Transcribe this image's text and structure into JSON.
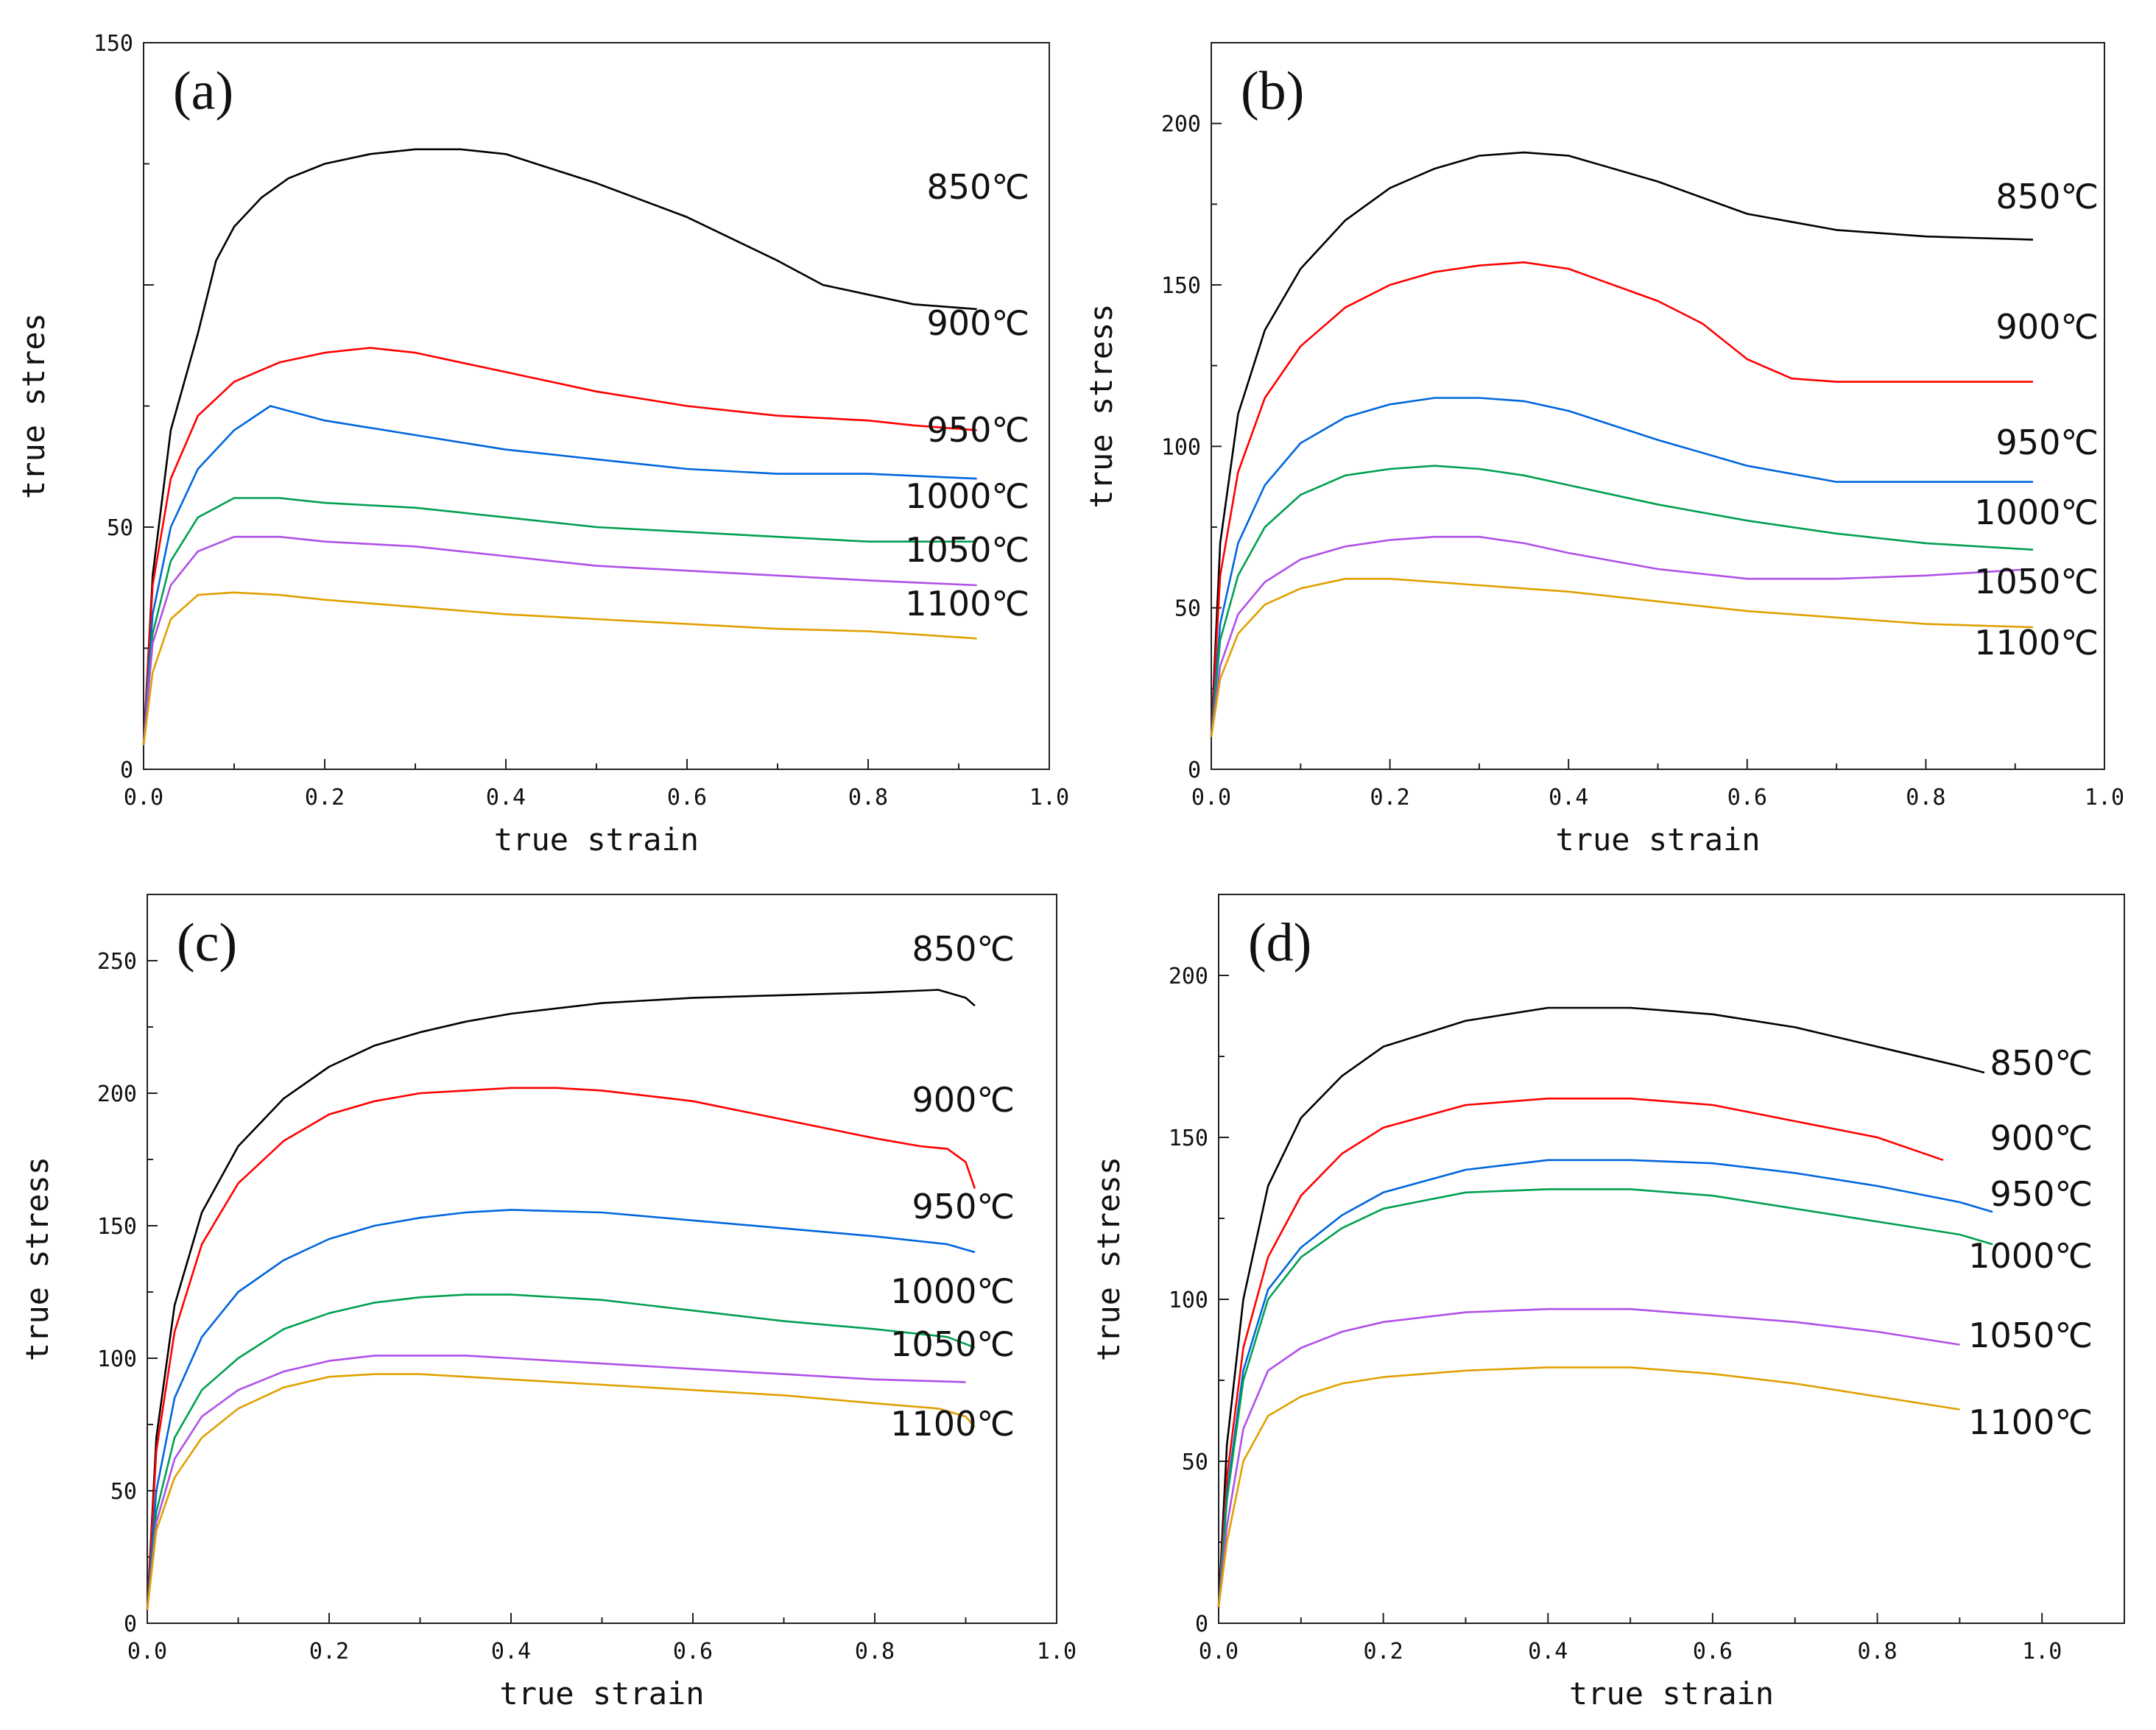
{
  "colors": {
    "850": "#000000",
    "900": "#ff0000",
    "950": "#0066dd",
    "1000": "#00a050",
    "1050": "#b050e8",
    "1100": "#e0a000"
  },
  "chart_data": [
    {
      "type": "line",
      "panel_label": "(a)",
      "xlabel": "true strain",
      "ylabel": "true stres",
      "xlim": [
        0,
        1.0
      ],
      "ylim": [
        0,
        150
      ],
      "xticks": [
        "0.0",
        "0.2",
        "0.4",
        "0.6",
        "0.8",
        "1.0"
      ],
      "yticks": [
        {
          "v": 0,
          "label": "0"
        },
        {
          "v": 50,
          "label": "50"
        },
        {
          "v": 100,
          "label": ""
        },
        {
          "v": 150,
          "label": "150"
        }
      ],
      "yminor": [
        25,
        75,
        125
      ],
      "series": [
        {
          "name": "850℃",
          "color_key": "850",
          "x": [
            0,
            0.01,
            0.03,
            0.06,
            0.08,
            0.1,
            0.13,
            0.16,
            0.2,
            0.25,
            0.3,
            0.35,
            0.4,
            0.5,
            0.6,
            0.7,
            0.75,
            0.8,
            0.85,
            0.92
          ],
          "y": [
            5,
            40,
            70,
            90,
            105,
            112,
            118,
            122,
            125,
            127,
            128,
            128,
            127,
            121,
            114,
            105,
            100,
            98,
            96,
            95
          ]
        },
        {
          "name": "900℃",
          "color_key": "900",
          "x": [
            0,
            0.01,
            0.03,
            0.06,
            0.1,
            0.15,
            0.2,
            0.25,
            0.3,
            0.35,
            0.4,
            0.5,
            0.6,
            0.7,
            0.8,
            0.85,
            0.92
          ],
          "y": [
            5,
            38,
            60,
            73,
            80,
            84,
            86,
            87,
            86,
            84,
            82,
            78,
            75,
            73,
            72,
            71,
            70
          ]
        },
        {
          "name": "950℃",
          "color_key": "950",
          "x": [
            0,
            0.01,
            0.03,
            0.06,
            0.1,
            0.14,
            0.2,
            0.3,
            0.4,
            0.5,
            0.6,
            0.7,
            0.8,
            0.92
          ],
          "y": [
            5,
            32,
            50,
            62,
            70,
            75,
            72,
            69,
            66,
            64,
            62,
            61,
            61,
            60
          ]
        },
        {
          "name": "1000℃",
          "color_key": "1000",
          "x": [
            0,
            0.01,
            0.03,
            0.06,
            0.1,
            0.15,
            0.2,
            0.3,
            0.4,
            0.5,
            0.6,
            0.7,
            0.8,
            0.92
          ],
          "y": [
            5,
            28,
            43,
            52,
            56,
            56,
            55,
            54,
            52,
            50,
            49,
            48,
            47,
            47
          ]
        },
        {
          "name": "1050℃",
          "color_key": "1050",
          "x": [
            0,
            0.01,
            0.03,
            0.06,
            0.1,
            0.15,
            0.2,
            0.3,
            0.4,
            0.5,
            0.6,
            0.7,
            0.8,
            0.92
          ],
          "y": [
            5,
            26,
            38,
            45,
            48,
            48,
            47,
            46,
            44,
            42,
            41,
            40,
            39,
            38
          ]
        },
        {
          "name": "1100℃",
          "color_key": "1100",
          "x": [
            0,
            0.01,
            0.03,
            0.06,
            0.1,
            0.15,
            0.2,
            0.3,
            0.4,
            0.5,
            0.6,
            0.7,
            0.8,
            0.92
          ],
          "y": [
            5,
            20,
            31,
            36,
            36.5,
            36,
            35,
            33.5,
            32,
            31,
            30,
            29,
            28.5,
            27
          ]
        }
      ]
    },
    {
      "type": "line",
      "panel_label": "(b)",
      "xlabel": "true strain",
      "ylabel": "true stress",
      "xlim": [
        0,
        1.0
      ],
      "ylim": [
        0,
        225
      ],
      "xticks": [
        "0.0",
        "0.2",
        "0.4",
        "0.6",
        "0.8",
        "1.0"
      ],
      "yticks": [
        {
          "v": 0,
          "label": "0"
        },
        {
          "v": 50,
          "label": "50"
        },
        {
          "v": 100,
          "label": "100"
        },
        {
          "v": 150,
          "label": "150"
        },
        {
          "v": 200,
          "label": "200"
        }
      ],
      "yminor": [
        25,
        75,
        125,
        175
      ],
      "series": [
        {
          "name": "850℃",
          "color_key": "850",
          "x": [
            0,
            0.01,
            0.03,
            0.06,
            0.1,
            0.15,
            0.2,
            0.25,
            0.3,
            0.35,
            0.4,
            0.5,
            0.6,
            0.7,
            0.8,
            0.92
          ],
          "y": [
            10,
            70,
            110,
            136,
            155,
            170,
            180,
            186,
            190,
            191,
            190,
            182,
            172,
            167,
            165,
            164
          ]
        },
        {
          "name": "900℃",
          "color_key": "900",
          "x": [
            0,
            0.01,
            0.03,
            0.06,
            0.1,
            0.15,
            0.2,
            0.25,
            0.3,
            0.35,
            0.4,
            0.5,
            0.55,
            0.6,
            0.65,
            0.7,
            0.8,
            0.92
          ],
          "y": [
            10,
            60,
            92,
            115,
            131,
            143,
            150,
            154,
            156,
            157,
            155,
            145,
            138,
            127,
            121,
            120,
            120,
            120
          ]
        },
        {
          "name": "950℃",
          "color_key": "950",
          "x": [
            0,
            0.01,
            0.03,
            0.06,
            0.1,
            0.15,
            0.2,
            0.25,
            0.3,
            0.35,
            0.4,
            0.5,
            0.6,
            0.7,
            0.8,
            0.92
          ],
          "y": [
            10,
            45,
            70,
            88,
            101,
            109,
            113,
            115,
            115,
            114,
            111,
            102,
            94,
            89,
            89,
            89
          ]
        },
        {
          "name": "1000℃",
          "color_key": "1000",
          "x": [
            0,
            0.01,
            0.03,
            0.06,
            0.1,
            0.15,
            0.2,
            0.25,
            0.3,
            0.35,
            0.4,
            0.5,
            0.6,
            0.7,
            0.8,
            0.92
          ],
          "y": [
            10,
            40,
            60,
            75,
            85,
            91,
            93,
            94,
            93,
            91,
            88,
            82,
            77,
            73,
            70,
            68
          ]
        },
        {
          "name": "1050℃",
          "color_key": "1050",
          "x": [
            0,
            0.01,
            0.03,
            0.06,
            0.1,
            0.15,
            0.2,
            0.25,
            0.3,
            0.35,
            0.4,
            0.5,
            0.6,
            0.7,
            0.8,
            0.92
          ],
          "y": [
            10,
            32,
            48,
            58,
            65,
            69,
            71,
            72,
            72,
            70,
            67,
            62,
            59,
            59,
            60,
            62
          ]
        },
        {
          "name": "1100℃",
          "color_key": "1100",
          "x": [
            0,
            0.01,
            0.03,
            0.06,
            0.1,
            0.15,
            0.2,
            0.3,
            0.4,
            0.5,
            0.6,
            0.7,
            0.8,
            0.92
          ],
          "y": [
            10,
            28,
            42,
            51,
            56,
            59,
            59,
            57,
            55,
            52,
            49,
            47,
            45,
            44
          ]
        }
      ]
    },
    {
      "type": "line",
      "panel_label": "(c)",
      "xlabel": "true strain",
      "ylabel": "true stress",
      "xlim": [
        0,
        1.0
      ],
      "ylim": [
        0,
        275
      ],
      "xticks": [
        "0.0",
        "0.2",
        "0.4",
        "0.6",
        "0.8",
        "1.0"
      ],
      "yticks": [
        {
          "v": 0,
          "label": "0"
        },
        {
          "v": 50,
          "label": "50"
        },
        {
          "v": 100,
          "label": "100"
        },
        {
          "v": 150,
          "label": "150"
        },
        {
          "v": 200,
          "label": "200"
        },
        {
          "v": 250,
          "label": "250"
        }
      ],
      "yminor": [
        25,
        75,
        125,
        175,
        225
      ],
      "series": [
        {
          "name": "850℃",
          "color_key": "850",
          "x": [
            0,
            0.01,
            0.03,
            0.06,
            0.1,
            0.15,
            0.2,
            0.25,
            0.3,
            0.35,
            0.4,
            0.5,
            0.6,
            0.7,
            0.8,
            0.87,
            0.9,
            0.91
          ],
          "y": [
            5,
            70,
            120,
            155,
            180,
            198,
            210,
            218,
            223,
            227,
            230,
            234,
            236,
            237,
            238,
            239,
            236,
            233
          ]
        },
        {
          "name": "900℃",
          "color_key": "900",
          "x": [
            0,
            0.01,
            0.03,
            0.06,
            0.1,
            0.15,
            0.2,
            0.25,
            0.3,
            0.35,
            0.4,
            0.45,
            0.5,
            0.6,
            0.7,
            0.8,
            0.85,
            0.88,
            0.9,
            0.91
          ],
          "y": [
            5,
            65,
            110,
            143,
            166,
            182,
            192,
            197,
            200,
            201,
            202,
            202,
            201,
            197,
            190,
            183,
            180,
            179,
            174,
            164
          ]
        },
        {
          "name": "950℃",
          "color_key": "950",
          "x": [
            0,
            0.01,
            0.03,
            0.06,
            0.1,
            0.15,
            0.2,
            0.25,
            0.3,
            0.35,
            0.4,
            0.5,
            0.6,
            0.7,
            0.8,
            0.88,
            0.91
          ],
          "y": [
            5,
            50,
            85,
            108,
            125,
            137,
            145,
            150,
            153,
            155,
            156,
            155,
            152,
            149,
            146,
            143,
            140
          ]
        },
        {
          "name": "1000℃",
          "color_key": "1000",
          "x": [
            0,
            0.01,
            0.03,
            0.06,
            0.1,
            0.15,
            0.2,
            0.25,
            0.3,
            0.35,
            0.4,
            0.5,
            0.6,
            0.7,
            0.8,
            0.88,
            0.91
          ],
          "y": [
            5,
            42,
            70,
            88,
            100,
            111,
            117,
            121,
            123,
            124,
            124,
            122,
            118,
            114,
            111,
            108,
            104
          ]
        },
        {
          "name": "1050℃",
          "color_key": "1050",
          "x": [
            0,
            0.01,
            0.03,
            0.06,
            0.1,
            0.15,
            0.2,
            0.25,
            0.3,
            0.35,
            0.4,
            0.5,
            0.6,
            0.7,
            0.8,
            0.9
          ],
          "y": [
            5,
            38,
            62,
            78,
            88,
            95,
            99,
            101,
            101,
            101,
            100,
            98,
            96,
            94,
            92,
            91
          ]
        },
        {
          "name": "1100℃",
          "color_key": "1100",
          "x": [
            0,
            0.01,
            0.03,
            0.06,
            0.1,
            0.15,
            0.2,
            0.25,
            0.3,
            0.35,
            0.4,
            0.5,
            0.6,
            0.7,
            0.8,
            0.87,
            0.9,
            0.91
          ],
          "y": [
            5,
            35,
            55,
            70,
            81,
            89,
            93,
            94,
            94,
            93,
            92,
            90,
            88,
            86,
            83,
            81,
            78,
            74
          ]
        }
      ]
    },
    {
      "type": "line",
      "panel_label": "(d)",
      "xlabel": "true strain",
      "ylabel": "true stress",
      "xlim": [
        0,
        1.1
      ],
      "ylim": [
        0,
        225
      ],
      "xticks": [
        "0.0",
        "0.2",
        "0.4",
        "0.6",
        "0.8",
        "1.0"
      ],
      "yticks": [
        {
          "v": 0,
          "label": "0"
        },
        {
          "v": 50,
          "label": "50"
        },
        {
          "v": 100,
          "label": "100"
        },
        {
          "v": 150,
          "label": "150"
        },
        {
          "v": 200,
          "label": "200"
        }
      ],
      "yminor": [
        25,
        75,
        125,
        175
      ],
      "series": [
        {
          "name": "850℃",
          "color_key": "850",
          "x": [
            0,
            0.01,
            0.03,
            0.06,
            0.1,
            0.15,
            0.2,
            0.3,
            0.4,
            0.5,
            0.6,
            0.7,
            0.8,
            0.9,
            0.93
          ],
          "y": [
            5,
            55,
            100,
            135,
            156,
            169,
            178,
            186,
            190,
            190,
            188,
            184,
            178,
            172,
            170
          ]
        },
        {
          "name": "900℃",
          "color_key": "900",
          "x": [
            0,
            0.01,
            0.03,
            0.06,
            0.1,
            0.15,
            0.2,
            0.3,
            0.4,
            0.5,
            0.6,
            0.7,
            0.8,
            0.88
          ],
          "y": [
            5,
            45,
            85,
            113,
            132,
            145,
            153,
            160,
            162,
            162,
            160,
            155,
            150,
            143
          ]
        },
        {
          "name": "950℃",
          "color_key": "950",
          "x": [
            0,
            0.01,
            0.03,
            0.06,
            0.1,
            0.15,
            0.2,
            0.3,
            0.4,
            0.5,
            0.6,
            0.7,
            0.8,
            0.9,
            0.94
          ],
          "y": [
            5,
            40,
            78,
            103,
            116,
            126,
            133,
            140,
            143,
            143,
            142,
            139,
            135,
            130,
            127
          ]
        },
        {
          "name": "1000℃",
          "color_key": "1000",
          "x": [
            0,
            0.01,
            0.03,
            0.06,
            0.1,
            0.15,
            0.2,
            0.3,
            0.4,
            0.5,
            0.6,
            0.7,
            0.8,
            0.9,
            0.94
          ],
          "y": [
            5,
            38,
            75,
            100,
            113,
            122,
            128,
            133,
            134,
            134,
            132,
            128,
            124,
            120,
            117
          ]
        },
        {
          "name": "1050℃",
          "color_key": "1050",
          "x": [
            0,
            0.01,
            0.03,
            0.06,
            0.1,
            0.15,
            0.2,
            0.3,
            0.4,
            0.5,
            0.6,
            0.7,
            0.8,
            0.9
          ],
          "y": [
            5,
            30,
            60,
            78,
            85,
            90,
            93,
            96,
            97,
            97,
            95,
            93,
            90,
            86
          ]
        },
        {
          "name": "1100℃",
          "color_key": "1100",
          "x": [
            0,
            0.01,
            0.03,
            0.06,
            0.1,
            0.15,
            0.2,
            0.3,
            0.4,
            0.5,
            0.6,
            0.7,
            0.8,
            0.9
          ],
          "y": [
            5,
            25,
            50,
            64,
            70,
            74,
            76,
            78,
            79,
            79,
            77,
            74,
            70,
            66
          ]
        }
      ]
    }
  ]
}
